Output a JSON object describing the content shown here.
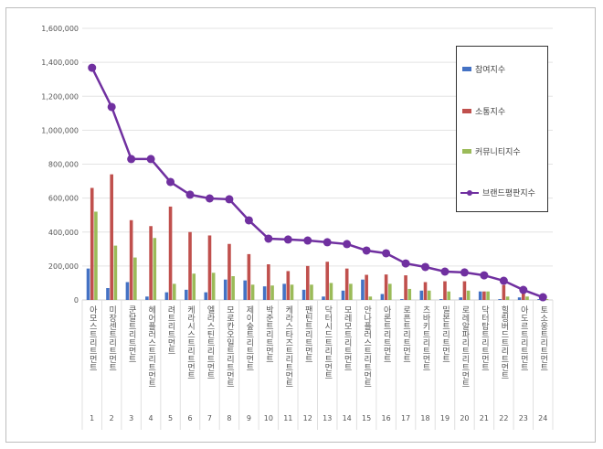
{
  "chart_data": {
    "type": "bar",
    "title": "",
    "xlabel": "",
    "ylabel": "",
    "ylim": [
      0,
      1600000
    ],
    "yticks": [
      "0",
      "200,000",
      "400,000",
      "600,000",
      "800,000",
      "1,000,000",
      "1,200,000",
      "1,400,000",
      "1,600,000"
    ],
    "grid": true,
    "legend_position": "right",
    "categories": [
      "아모스트리트먼트",
      "미장센트리트먼트",
      "쿤달트리트먼트",
      "헤어플러스트리트먼트",
      "려트리트먼트",
      "케라시스트리트먼트",
      "엘라스틴트리트먼트",
      "모로칸오일트리트먼트",
      "제이숲트리트먼트",
      "박준트리트먼트",
      "케라스타즈트리트먼트",
      "팬틴트리트먼트",
      "닥터시드트리트먼트",
      "모레모트리트먼트",
      "안나플러스트리트먼트",
      "아론트리트먼트",
      "로픈트리트먼트",
      "츠바키트리트먼트",
      "밀본트리트먼트",
      "로레알파리트리트먼트",
      "닥터탑트리트먼트",
      "힐링버드트리트먼트",
      "아도르트리트먼트",
      "토소웅트리트먼트"
    ],
    "ranks": [
      "1",
      "2",
      "3",
      "4",
      "5",
      "6",
      "7",
      "8",
      "9",
      "10",
      "11",
      "12",
      "13",
      "14",
      "15",
      "16",
      "17",
      "18",
      "19",
      "20",
      "21",
      "22",
      "23",
      "24"
    ],
    "series": [
      {
        "name": "참여지수",
        "type": "bar",
        "color": "#4472c4",
        "values": [
          185000,
          70000,
          105000,
          20000,
          45000,
          60000,
          45000,
          120000,
          115000,
          80000,
          95000,
          60000,
          20000,
          55000,
          120000,
          35000,
          5000,
          55000,
          5000,
          15000,
          50000,
          5000,
          15000,
          5000
        ]
      },
      {
        "name": "소통지수",
        "type": "bar",
        "color": "#c0504d",
        "values": [
          660000,
          740000,
          470000,
          435000,
          550000,
          400000,
          380000,
          330000,
          270000,
          210000,
          170000,
          200000,
          225000,
          185000,
          148000,
          150000,
          145000,
          105000,
          110000,
          110000,
          50000,
          88000,
          40000,
          5000
        ]
      },
      {
        "name": "커뮤니티지수",
        "type": "bar",
        "color": "#9bbb59",
        "values": [
          520000,
          320000,
          250000,
          365000,
          95000,
          155000,
          160000,
          140000,
          90000,
          85000,
          90000,
          90000,
          100000,
          95000,
          20000,
          95000,
          65000,
          55000,
          50000,
          55000,
          50000,
          20000,
          20000,
          5000
        ]
      },
      {
        "name": "브랜드평판지수",
        "type": "line",
        "color": "#7030a0",
        "values": [
          1368000,
          1137000,
          830000,
          830000,
          695000,
          620000,
          598000,
          593000,
          469000,
          361000,
          356000,
          350000,
          340000,
          329000,
          291000,
          275000,
          215000,
          194000,
          167000,
          162000,
          145000,
          113000,
          59000,
          16000
        ]
      }
    ]
  }
}
